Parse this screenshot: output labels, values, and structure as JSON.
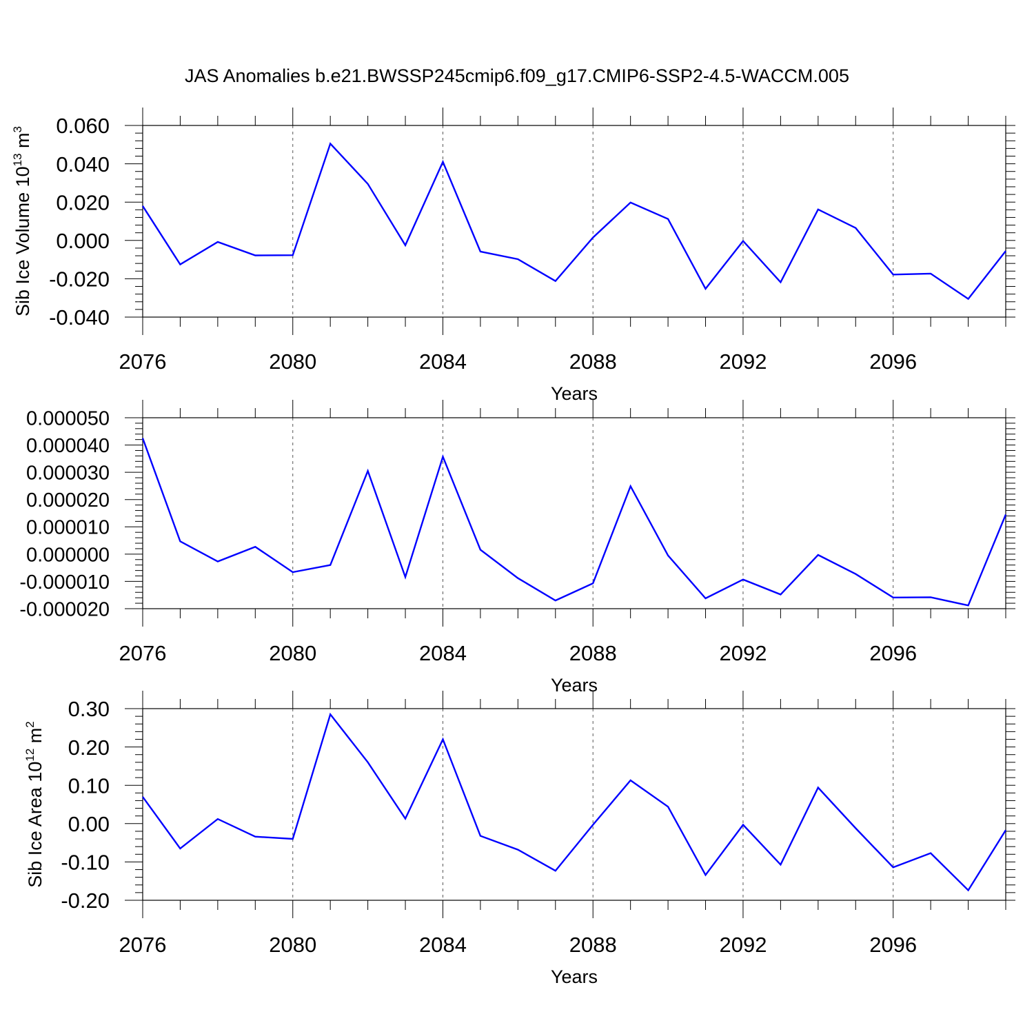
{
  "title": "JAS Anomalies b.e21.BWSSP245cmip6.f09_g17.CMIP6-SSP2-4.5-WACCM.005",
  "chart_data": [
    {
      "type": "line",
      "ylabel": "Sib Ice Volume 10",
      "ylabel_exp": "13",
      "ylabel_unit": " m",
      "ylabel_unit_exp": "3",
      "xlabel": "Years",
      "xlim": [
        2076,
        2099
      ],
      "ylim": [
        -0.04,
        0.06
      ],
      "yticks": [
        -0.04,
        -0.02,
        0.0,
        0.02,
        0.04,
        0.06
      ],
      "ytick_labels": [
        "-0.040",
        "-0.020",
        "0.000",
        "0.020",
        "0.040",
        "0.060"
      ],
      "xticks": [
        2076,
        2080,
        2084,
        2088,
        2092,
        2096
      ],
      "xtick_labels": [
        "2076",
        "2080",
        "2084",
        "2088",
        "2092",
        "2096"
      ],
      "grid": "vertical-dashed",
      "color": "#0000ff",
      "x": [
        2076,
        2077,
        2078,
        2079,
        2080,
        2081,
        2082,
        2083,
        2084,
        2085,
        2086,
        2087,
        2088,
        2089,
        2090,
        2091,
        2092,
        2093,
        2094,
        2095,
        2096,
        2097,
        2098,
        2099
      ],
      "y": [
        0.018,
        -0.0125,
        -0.0008,
        -0.0078,
        -0.0077,
        0.0505,
        0.0295,
        -0.0025,
        0.041,
        -0.0058,
        -0.0098,
        -0.0212,
        0.0015,
        0.0198,
        0.0112,
        -0.0252,
        -0.0003,
        -0.0218,
        0.0162,
        0.0065,
        -0.0178,
        -0.0173,
        -0.0305,
        -0.0055
      ]
    },
    {
      "type": "line",
      "ylabel": "",
      "xlabel": "Years",
      "xlim": [
        2076,
        2099
      ],
      "ylim": [
        -2e-05,
        5e-05
      ],
      "yticks": [
        -2e-05,
        -1e-05,
        0.0,
        1e-05,
        2e-05,
        3e-05,
        4e-05,
        5e-05
      ],
      "ytick_labels": [
        "-0.000020",
        "-0.000010",
        "0.000000",
        "0.000010",
        "0.000020",
        "0.000030",
        "0.000040",
        "0.000050"
      ],
      "xticks": [
        2076,
        2080,
        2084,
        2088,
        2092,
        2096
      ],
      "xtick_labels": [
        "2076",
        "2080",
        "2084",
        "2088",
        "2092",
        "2096"
      ],
      "grid": "vertical-dashed",
      "color": "#0000ff",
      "x": [
        2076,
        2077,
        2078,
        2079,
        2080,
        2081,
        2082,
        2083,
        2084,
        2085,
        2086,
        2087,
        2088,
        2089,
        2090,
        2091,
        2092,
        2093,
        2094,
        2095,
        2096,
        2097,
        2098,
        2099
      ],
      "y": [
        4.25e-05,
        4.7e-06,
        -2.7e-06,
        2.7e-06,
        -6.6e-06,
        -4e-06,
        3.05e-05,
        -8.4e-06,
        3.57e-05,
        1.6e-06,
        -8.8e-06,
        -1.7e-05,
        -1.07e-05,
        2.49e-05,
        -5e-07,
        -1.62e-05,
        -9.3e-06,
        -1.48e-05,
        -3e-07,
        -7.3e-06,
        -1.59e-05,
        -1.58e-05,
        -1.88e-05,
        1.45e-05
      ]
    },
    {
      "type": "line",
      "ylabel": "Sib Ice Area 10",
      "ylabel_exp": "12",
      "ylabel_unit": " m",
      "ylabel_unit_exp": "2",
      "xlabel": "Years",
      "xlim": [
        2076,
        2099
      ],
      "ylim": [
        -0.2,
        0.3
      ],
      "yticks": [
        -0.2,
        -0.1,
        0.0,
        0.1,
        0.2,
        0.3
      ],
      "ytick_labels": [
        "-0.20",
        "-0.10",
        "0.00",
        "0.10",
        "0.20",
        "0.30"
      ],
      "xticks": [
        2076,
        2080,
        2084,
        2088,
        2092,
        2096
      ],
      "xtick_labels": [
        "2076",
        "2080",
        "2084",
        "2088",
        "2092",
        "2096"
      ],
      "grid": "vertical-dashed",
      "color": "#0000ff",
      "x": [
        2076,
        2077,
        2078,
        2079,
        2080,
        2081,
        2082,
        2083,
        2084,
        2085,
        2086,
        2087,
        2088,
        2089,
        2090,
        2091,
        2092,
        2093,
        2094,
        2095,
        2096,
        2097,
        2098,
        2099
      ],
      "y": [
        0.07,
        -0.065,
        0.012,
        -0.034,
        -0.04,
        0.285,
        0.16,
        0.013,
        0.22,
        -0.032,
        -0.068,
        -0.123,
        -0.003,
        0.113,
        0.044,
        -0.134,
        -0.003,
        -0.107,
        0.094,
        -0.012,
        -0.114,
        -0.077,
        -0.174,
        -0.017
      ]
    }
  ]
}
